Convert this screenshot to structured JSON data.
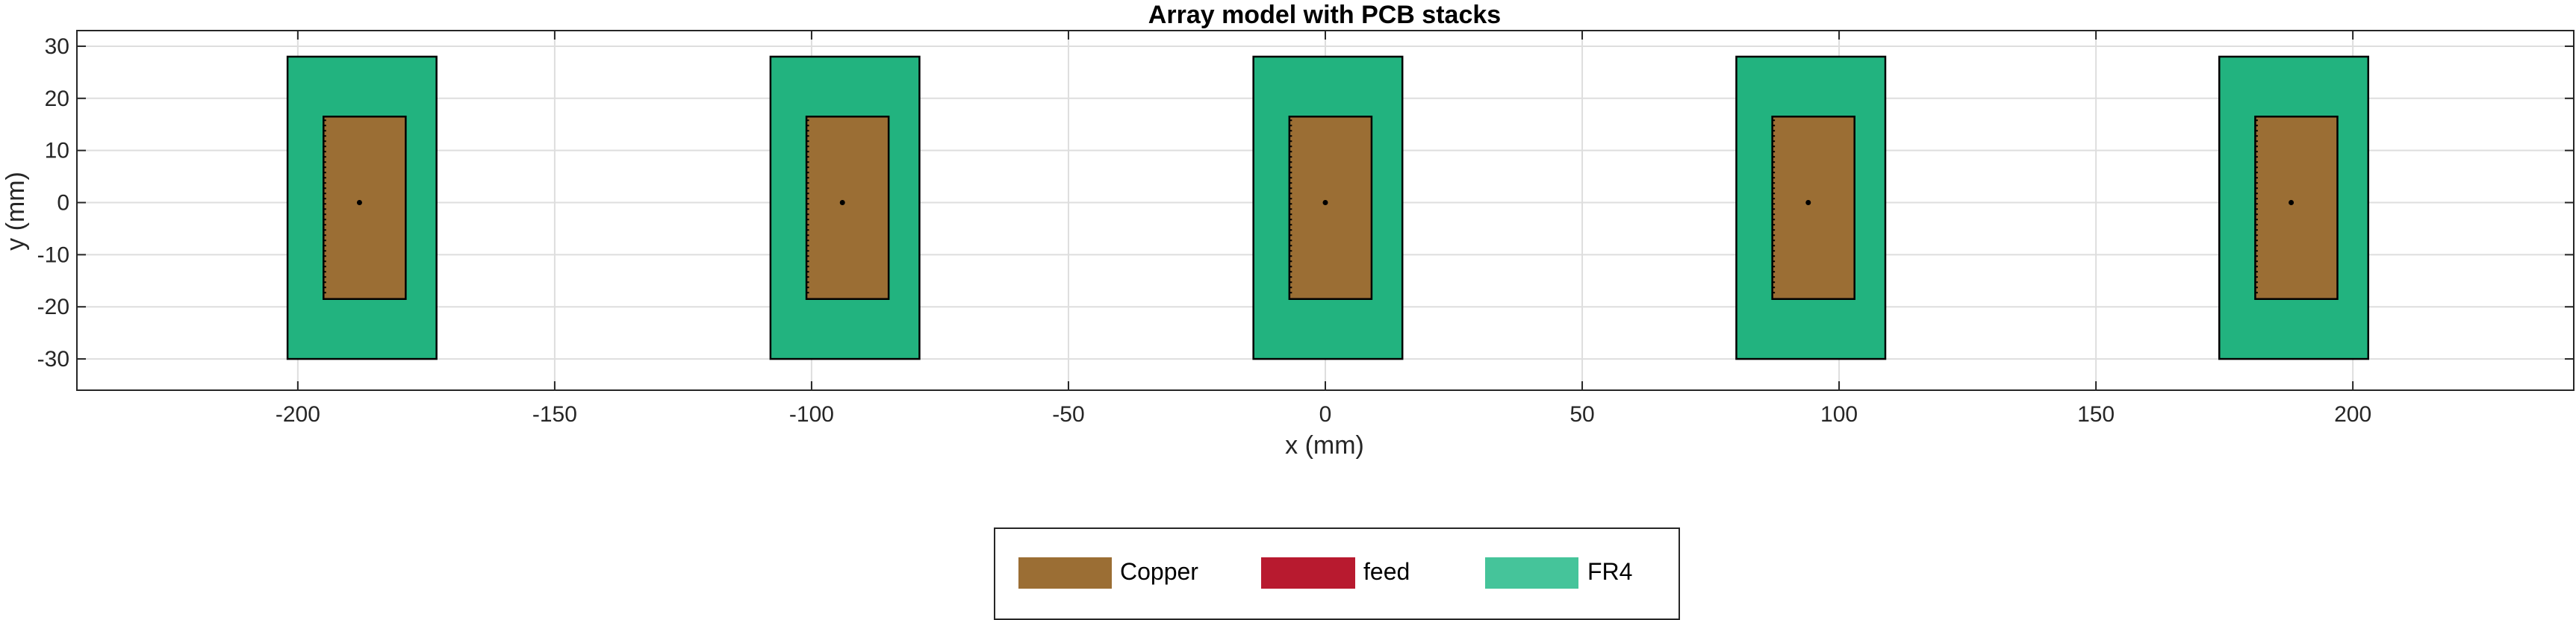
{
  "chart_data": {
    "type": "scatter",
    "title": "Array model with PCB stacks",
    "xlabel": "x (mm)",
    "ylabel": "y (mm)",
    "xlim": [
      -243,
      243
    ],
    "ylim": [
      -36,
      33
    ],
    "xticks": [
      -200,
      -150,
      -100,
      -50,
      0,
      50,
      100,
      150,
      200
    ],
    "yticks": [
      -30,
      -20,
      -10,
      0,
      10,
      20,
      30
    ],
    "grid": true,
    "legend_position": "bottom-center",
    "elements": [
      {
        "center_x": -188,
        "substrate": {
          "x": [
            -202,
            -173
          ],
          "y": [
            -30,
            28
          ]
        },
        "patch": {
          "x": [
            -195,
            -179
          ],
          "y": [
            -18.5,
            16.5
          ]
        },
        "feed": {
          "x": -188,
          "y": 0
        }
      },
      {
        "center_x": -94,
        "substrate": {
          "x": [
            -108,
            -79
          ],
          "y": [
            -30,
            28
          ]
        },
        "patch": {
          "x": [
            -101,
            -85
          ],
          "y": [
            -18.5,
            16.5
          ]
        },
        "feed": {
          "x": -94,
          "y": 0
        }
      },
      {
        "center_x": 0,
        "substrate": {
          "x": [
            -14,
            15
          ],
          "y": [
            -30,
            28
          ]
        },
        "patch": {
          "x": [
            -7,
            9
          ],
          "y": [
            -18.5,
            16.5
          ]
        },
        "feed": {
          "x": 0,
          "y": 0
        }
      },
      {
        "center_x": 94,
        "substrate": {
          "x": [
            80,
            109
          ],
          "y": [
            -30,
            28
          ]
        },
        "patch": {
          "x": [
            87,
            103
          ],
          "y": [
            -18.5,
            16.5
          ]
        },
        "feed": {
          "x": 94,
          "y": 0
        }
      },
      {
        "center_x": 188,
        "substrate": {
          "x": [
            174,
            203
          ],
          "y": [
            -30,
            28
          ]
        },
        "patch": {
          "x": [
            181,
            197
          ],
          "y": [
            -18.5,
            16.5
          ]
        },
        "feed": {
          "x": 188,
          "y": 0
        }
      }
    ],
    "legend": [
      {
        "label": "Copper",
        "color": "#9b6e34"
      },
      {
        "label": "feed",
        "color": "#b81a2f"
      },
      {
        "label": "FR4",
        "color": "#45c49a"
      }
    ],
    "colors": {
      "copper": "#9b6e34",
      "substrate": "#22b37f",
      "grid": "#dedede",
      "axis": "#262626"
    }
  }
}
